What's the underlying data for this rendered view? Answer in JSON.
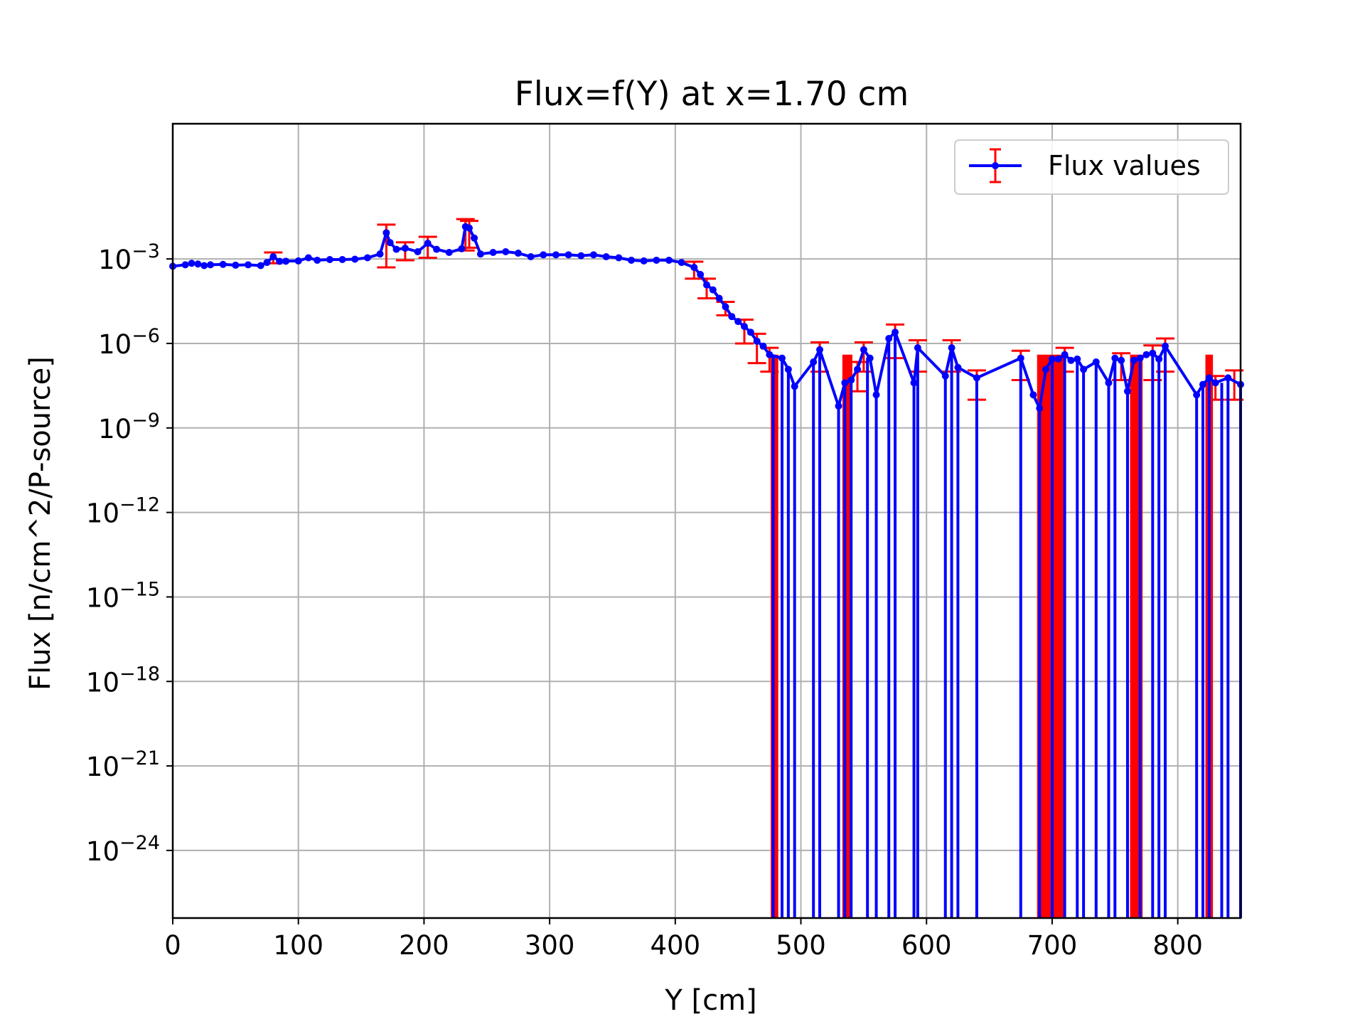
{
  "chart_data": {
    "type": "line",
    "title": "Flux=f(Y) at x=1.70 cm",
    "xlabel": "Y [cm]",
    "ylabel": "Flux [n/cm^2/P-source]",
    "xlim": [
      0,
      850
    ],
    "ylim_log10": [
      -26.4,
      1.8
    ],
    "y_scale": "log",
    "grid": true,
    "legend_position": "top-right",
    "x_ticks": [
      0,
      100,
      200,
      300,
      400,
      500,
      600,
      700,
      800
    ],
    "x_tick_labels": [
      "0",
      "100",
      "200",
      "300",
      "400",
      "500",
      "600",
      "700",
      "800"
    ],
    "y_ticks_exp": [
      -3,
      -6,
      -9,
      -12,
      -15,
      -18,
      -21,
      -24
    ],
    "y_tick_base": "10",
    "y_tick_exponents": [
      "−3",
      "−6",
      "−9",
      "−12",
      "−15",
      "−18",
      "−21",
      "−24"
    ],
    "line_color": "#0000ff",
    "error_color": "#ff0000",
    "series": [
      {
        "name": "Flux values",
        "points": [
          [
            0,
            0.00055
          ],
          [
            10,
            0.00062
          ],
          [
            15,
            0.0007
          ],
          [
            20,
            0.00066
          ],
          [
            25,
            0.00058
          ],
          [
            30,
            0.00062
          ],
          [
            40,
            0.00064
          ],
          [
            50,
            0.0006
          ],
          [
            60,
            0.00062
          ],
          [
            70,
            0.00058
          ],
          [
            75,
            0.00075
          ],
          [
            80,
            0.0012
          ],
          [
            85,
            0.00082
          ],
          [
            90,
            0.00083
          ],
          [
            100,
            0.00085
          ],
          [
            108,
            0.0011
          ],
          [
            115,
            0.0009
          ],
          [
            125,
            0.00095
          ],
          [
            135,
            0.00095
          ],
          [
            145,
            0.00098
          ],
          [
            155,
            0.0011
          ],
          [
            165,
            0.0015
          ],
          [
            170,
            0.0085
          ],
          [
            173,
            0.0038
          ],
          [
            178,
            0.0022
          ],
          [
            185,
            0.0024
          ],
          [
            195,
            0.0018
          ],
          [
            203,
            0.0036
          ],
          [
            210,
            0.0022
          ],
          [
            220,
            0.0017
          ],
          [
            230,
            0.0023
          ],
          [
            233,
            0.014
          ],
          [
            236,
            0.0125
          ],
          [
            240,
            0.0055
          ],
          [
            245,
            0.0015
          ],
          [
            255,
            0.0017
          ],
          [
            265,
            0.0018
          ],
          [
            275,
            0.0016
          ],
          [
            285,
            0.0012
          ],
          [
            295,
            0.0014
          ],
          [
            305,
            0.0014
          ],
          [
            315,
            0.0014
          ],
          [
            325,
            0.0013
          ],
          [
            335,
            0.0014
          ],
          [
            345,
            0.0012
          ],
          [
            355,
            0.0011
          ],
          [
            365,
            0.0009
          ],
          [
            375,
            0.00085
          ],
          [
            385,
            0.0009
          ],
          [
            395,
            0.0009
          ],
          [
            405,
            0.00075
          ],
          [
            415,
            0.0005
          ],
          [
            420,
            0.00028
          ],
          [
            425,
            0.00012
          ],
          [
            430,
            8e-05
          ],
          [
            435,
            4e-05
          ],
          [
            440,
            2e-05
          ],
          [
            445,
            9e-06
          ],
          [
            450,
            6e-06
          ],
          [
            455,
            4e-06
          ],
          [
            460,
            2.5e-06
          ],
          [
            465,
            1.2e-06
          ],
          [
            470,
            8e-07
          ],
          [
            475,
            4e-07
          ],
          [
            485,
            3e-07
          ],
          [
            490,
            1.2e-07
          ],
          [
            495,
            3e-08
          ],
          [
            510,
            2.2e-07
          ],
          [
            515,
            6e-07
          ],
          [
            530,
            6e-09
          ],
          [
            535,
            4e-08
          ],
          [
            540,
            5e-08
          ],
          [
            545,
            1.2e-07
          ],
          [
            550,
            6e-07
          ],
          [
            555,
            3e-07
          ],
          [
            560,
            1.5e-08
          ],
          [
            570,
            1.5e-06
          ],
          [
            575,
            2.5e-06
          ],
          [
            590,
            4e-08
          ],
          [
            593,
            7e-07
          ],
          [
            615,
            7e-08
          ],
          [
            620,
            7e-07
          ],
          [
            625,
            1.4e-07
          ],
          [
            640,
            6e-08
          ],
          [
            675,
            3e-07
          ],
          [
            685,
            1.5e-08
          ],
          [
            690,
            5e-09
          ],
          [
            695,
            1.2e-07
          ],
          [
            700,
            2.8e-07
          ],
          [
            705,
            2.8e-07
          ],
          [
            710,
            4e-07
          ],
          [
            715,
            2.5e-07
          ],
          [
            720,
            2.8e-07
          ],
          [
            725,
            1.2e-07
          ],
          [
            735,
            2.2e-07
          ],
          [
            745,
            4e-08
          ],
          [
            750,
            3e-07
          ],
          [
            755,
            2.5e-07
          ],
          [
            760,
            2e-08
          ],
          [
            765,
            2.5e-07
          ],
          [
            770,
            3e-07
          ],
          [
            775,
            4e-07
          ],
          [
            780,
            4.5e-07
          ],
          [
            785,
            2.8e-07
          ],
          [
            790,
            8e-07
          ],
          [
            815,
            1.5e-08
          ],
          [
            820,
            3.5e-08
          ],
          [
            825,
            6e-08
          ],
          [
            830,
            4e-08
          ],
          [
            840,
            6e-08
          ],
          [
            850,
            3.5e-08
          ]
        ],
        "drop_lines_x": [
          478,
          485,
          490,
          495,
          510,
          515,
          530,
          535,
          540,
          553,
          560,
          570,
          575,
          590,
          593,
          615,
          620,
          625,
          640,
          675,
          690,
          700,
          710,
          720,
          725,
          735,
          745,
          750,
          760,
          770,
          780,
          785,
          790,
          815,
          820,
          825,
          835,
          840,
          850
        ],
        "error_bars": [
          [
            80,
            0.0012,
            0.0005
          ],
          [
            170,
            0.0085,
            0.008
          ],
          [
            203,
            0.0036,
            0.0025
          ],
          [
            233,
            0.014,
            0.012
          ],
          [
            236,
            0.0125,
            0.01
          ],
          [
            185,
            0.0024,
            0.0015
          ],
          [
            415,
            0.0005,
            0.0003
          ],
          [
            425,
            0.00012,
            8e-05
          ],
          [
            440,
            2e-05,
            1e-05
          ],
          [
            455,
            4e-06,
            3e-06
          ],
          [
            465,
            1.2e-06,
            1e-06
          ],
          [
            475,
            4e-07,
            3e-07
          ],
          [
            515,
            6e-07,
            5e-07
          ],
          [
            545,
            1.2e-07,
            1e-07
          ],
          [
            550,
            6e-07,
            5e-07
          ],
          [
            575,
            2.5e-06,
            2.2e-06
          ],
          [
            593,
            7e-07,
            6e-07
          ],
          [
            620,
            7e-07,
            6e-07
          ],
          [
            640,
            6e-08,
            5e-08
          ],
          [
            675,
            3e-07,
            2.5e-07
          ],
          [
            710,
            4e-07,
            3e-07
          ],
          [
            755,
            2.5e-07,
            2e-07
          ],
          [
            780,
            4.5e-07,
            4e-07
          ],
          [
            790,
            8e-07,
            7e-07
          ],
          [
            830,
            4e-08,
            3e-08
          ],
          [
            845,
            6e-08,
            5e-08
          ]
        ],
        "error_fill_ranges": [
          [
            476,
            482
          ],
          [
            533,
            541
          ],
          [
            688,
            711
          ],
          [
            762,
            772
          ],
          [
            822,
            828
          ]
        ]
      }
    ]
  }
}
